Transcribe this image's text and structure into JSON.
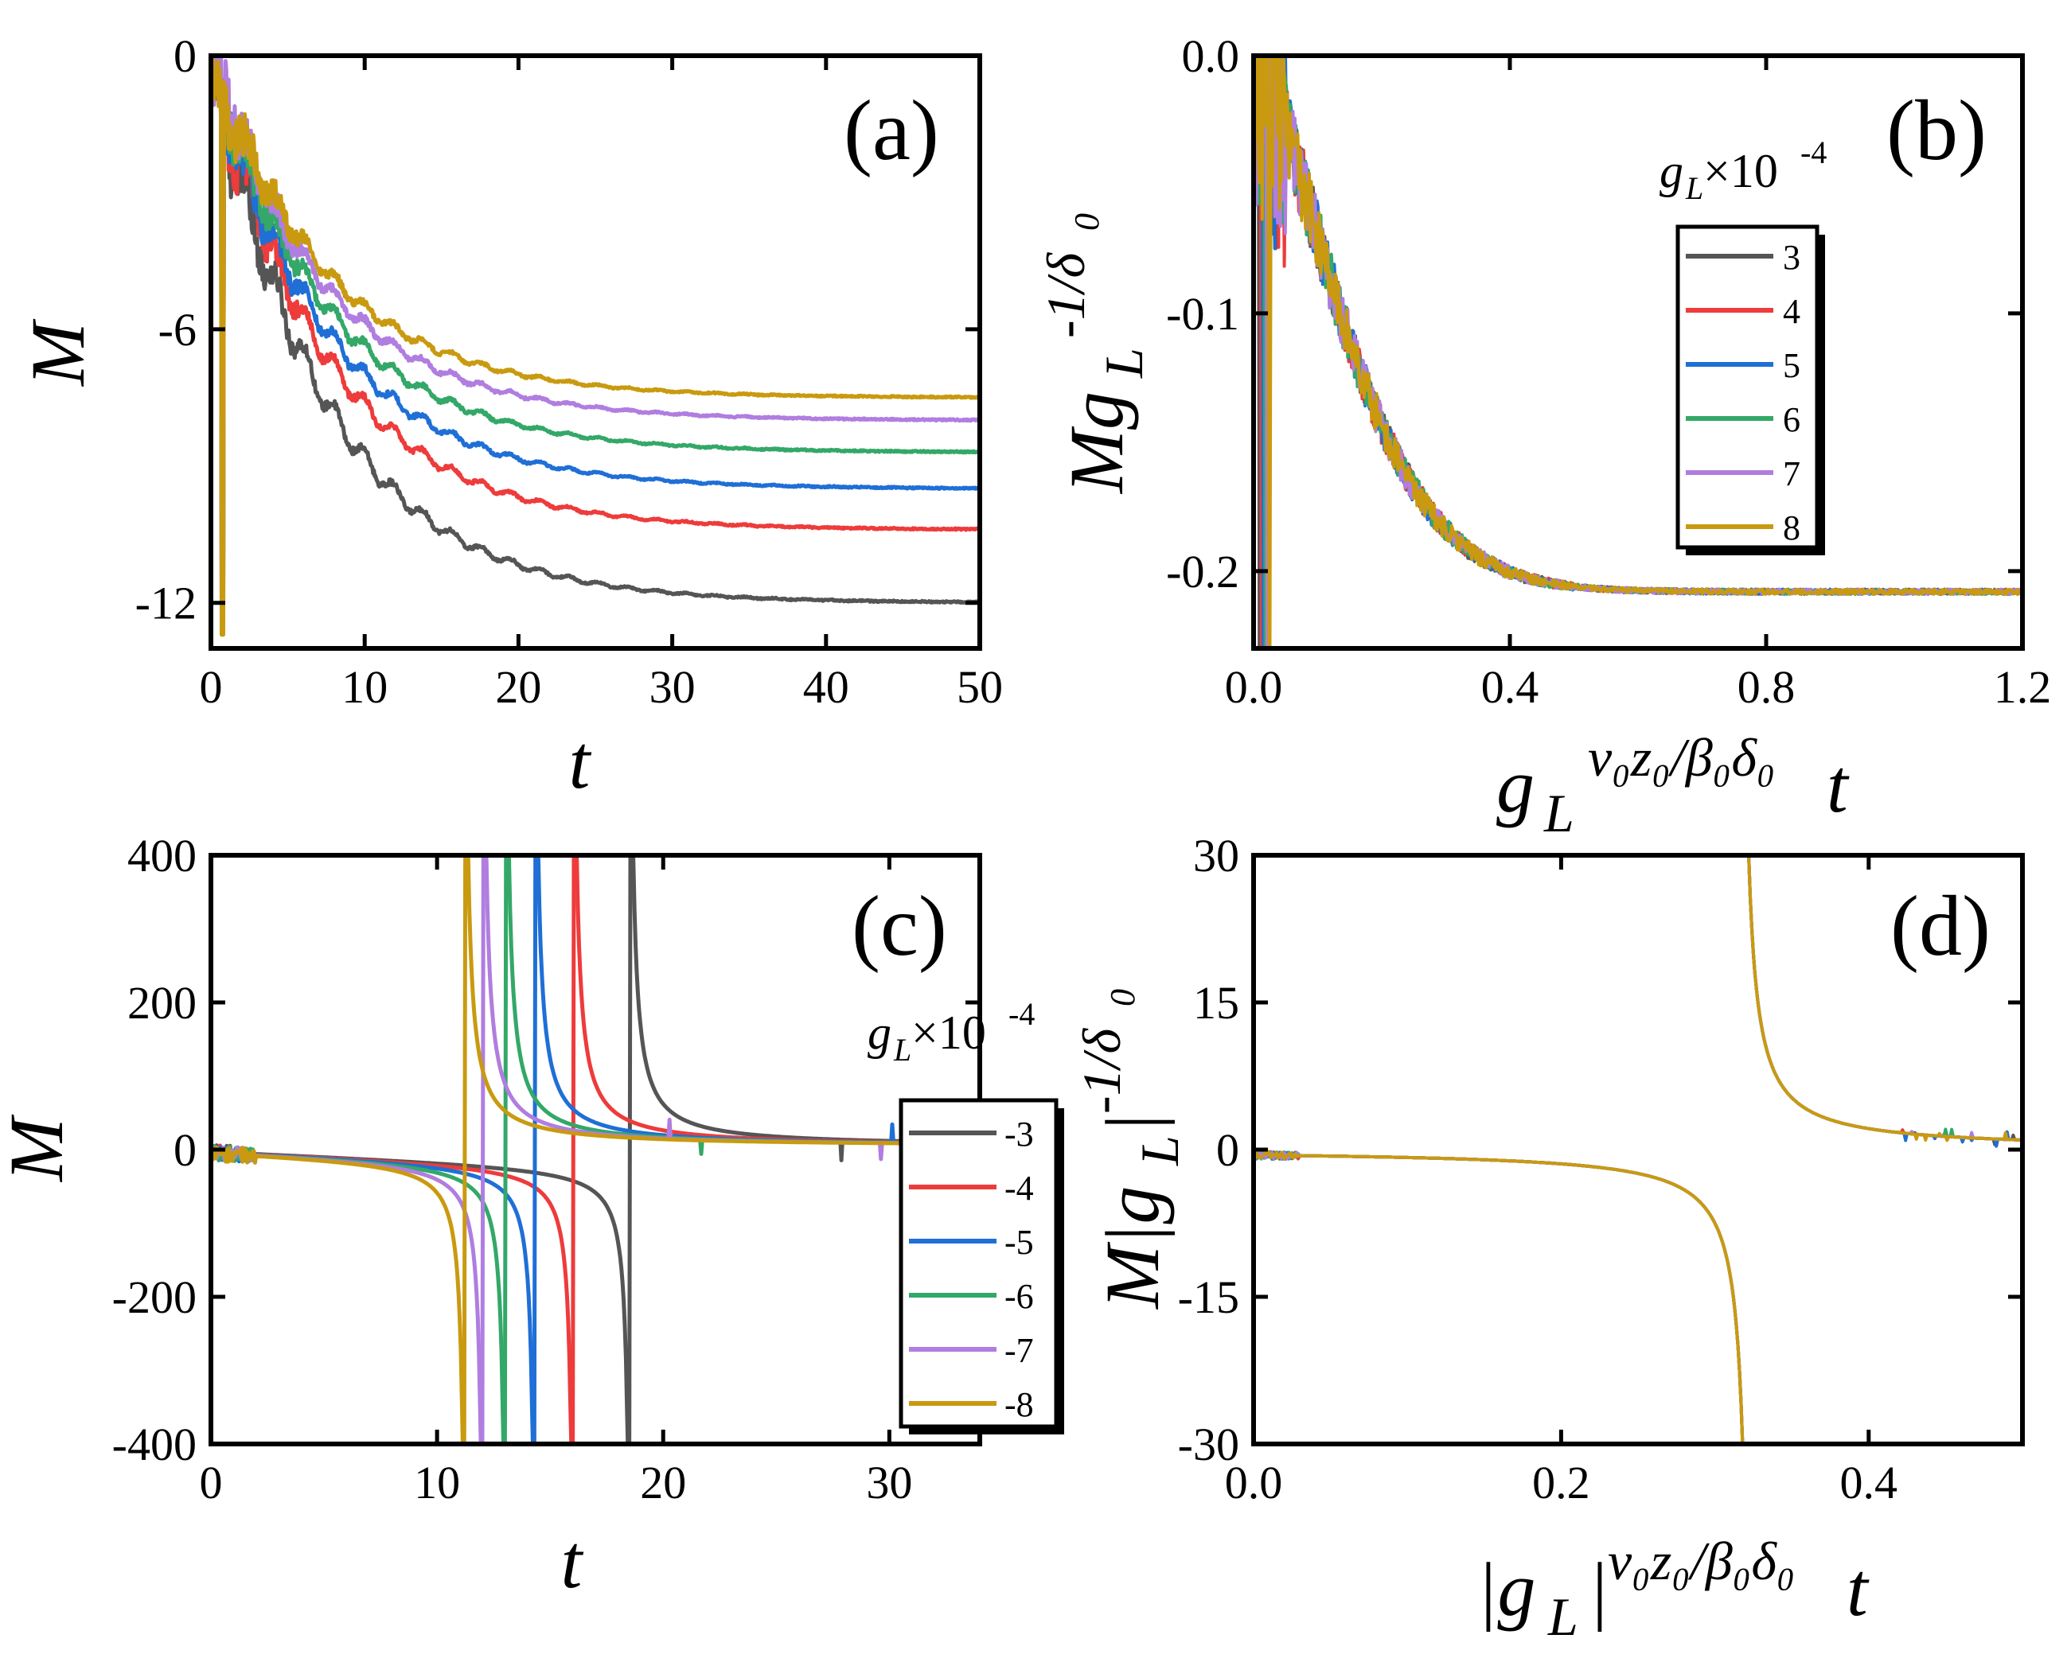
{
  "colors": {
    "c3": "#555555",
    "c4": "#ee3b3b",
    "c5": "#1f6fd6",
    "c6": "#33a868",
    "c7": "#b07de0",
    "c8": "#c99a10"
  },
  "chart_data": [
    {
      "panel": "(a)",
      "type": "line",
      "xlabel": "t",
      "ylabel": "M",
      "xlim": [
        0,
        50
      ],
      "ylim": [
        -13,
        0
      ],
      "xticks": [
        "0",
        "10",
        "20",
        "30",
        "40",
        "50"
      ],
      "yticks": [
        "0",
        "-6",
        "-12"
      ],
      "series": [
        {
          "name": "3",
          "color": "c3",
          "final": -12.0,
          "transient": 0.8
        },
        {
          "name": "4",
          "color": "c4",
          "final": -10.4,
          "transient": 0.62
        },
        {
          "name": "5",
          "color": "c5",
          "final": -9.5,
          "transient": 0.52
        },
        {
          "name": "6",
          "color": "c6",
          "final": -8.7,
          "transient": 0.43
        },
        {
          "name": "7",
          "color": "c7",
          "final": -8.0,
          "transient": 0.35
        },
        {
          "name": "8",
          "color": "c8",
          "final": -7.5,
          "transient": 0.28
        }
      ]
    },
    {
      "panel": "(b)",
      "type": "line",
      "xlabel": "g_L^{ν0 z0/β0 δ0} t",
      "ylabel": "M g_L^{-1/δ0}",
      "xlim": [
        0,
        1.2
      ],
      "ylim": [
        -0.23,
        0
      ],
      "xticks": [
        "0.0",
        "0.4",
        "0.8",
        "1.2"
      ],
      "yticks": [
        "0.0",
        "-0.1",
        "-0.2"
      ],
      "collapse_value": -0.208,
      "legend": {
        "title": "g_L×10^-4",
        "entries": [
          "3",
          "4",
          "5",
          "6",
          "7",
          "8"
        ]
      }
    },
    {
      "panel": "(c)",
      "type": "line",
      "xlabel": "t",
      "ylabel": "M",
      "xlim": [
        0,
        34
      ],
      "ylim": [
        -400,
        400
      ],
      "xticks": [
        "0",
        "10",
        "20",
        "30"
      ],
      "yticks": [
        "400",
        "200",
        "0",
        "-200",
        "-400"
      ],
      "series": [
        {
          "name": "-3",
          "color": "c3",
          "divergence_t": 18.5
        },
        {
          "name": "-4",
          "color": "c4",
          "divergence_t": 16.0
        },
        {
          "name": "-5",
          "color": "c5",
          "divergence_t": 14.3
        },
        {
          "name": "-6",
          "color": "c6",
          "divergence_t": 13.0
        },
        {
          "name": "-7",
          "color": "c7",
          "divergence_t": 12.0
        },
        {
          "name": "-8",
          "color": "c8",
          "divergence_t": 11.2
        }
      ],
      "legend": {
        "title": "g_L×10^-4",
        "entries": [
          "-3",
          "-4",
          "-5",
          "-6",
          "-7",
          "-8"
        ]
      }
    },
    {
      "panel": "(d)",
      "type": "line",
      "xlabel": "|g_L|^{ν0 z0/β0 δ0} t",
      "ylabel": "M |g_L|^{-1/δ0}",
      "xlim": [
        0,
        0.5
      ],
      "ylim": [
        -30,
        30
      ],
      "xticks": [
        "0.0",
        "0.2",
        "0.4"
      ],
      "yticks": [
        "30",
        "15",
        "0",
        "-15",
        "-30"
      ],
      "divergence_x": 0.32
    }
  ],
  "labels": {
    "a_panel": "(a)",
    "b_panel": "(b)",
    "c_panel": "(c)",
    "d_panel": "(d)",
    "a_ylabel": "M",
    "a_xlabel": "t",
    "b_ylabel_main": "Mg",
    "b_ylabel_sub": "L",
    "b_ylabel_sup": "-1/δ",
    "b_ylabel_sup_sub": "0",
    "b_xlabel_main": "g",
    "b_xlabel_sub": "L",
    "b_xlabel_sup": "ν₀z₀/β₀δ₀",
    "b_xlabel_t": "t",
    "c_ylabel": "M",
    "c_xlabel": "t",
    "d_ylabel_main": "M|g",
    "d_ylabel_sub": "L",
    "d_ylabel_bar": "|",
    "d_ylabel_sup": "-1/δ",
    "d_ylabel_sup_sub": "0",
    "d_xlabel_main": "|g",
    "d_xlabel_sub": "L",
    "d_xlabel_bar": "|",
    "d_xlabel_sup": "ν₀z₀/β₀δ₀",
    "d_xlabel_t": "t",
    "legend_title_main": "g",
    "legend_title_sub": "L",
    "legend_title_mul": "×10",
    "legend_title_sup": "-4"
  }
}
